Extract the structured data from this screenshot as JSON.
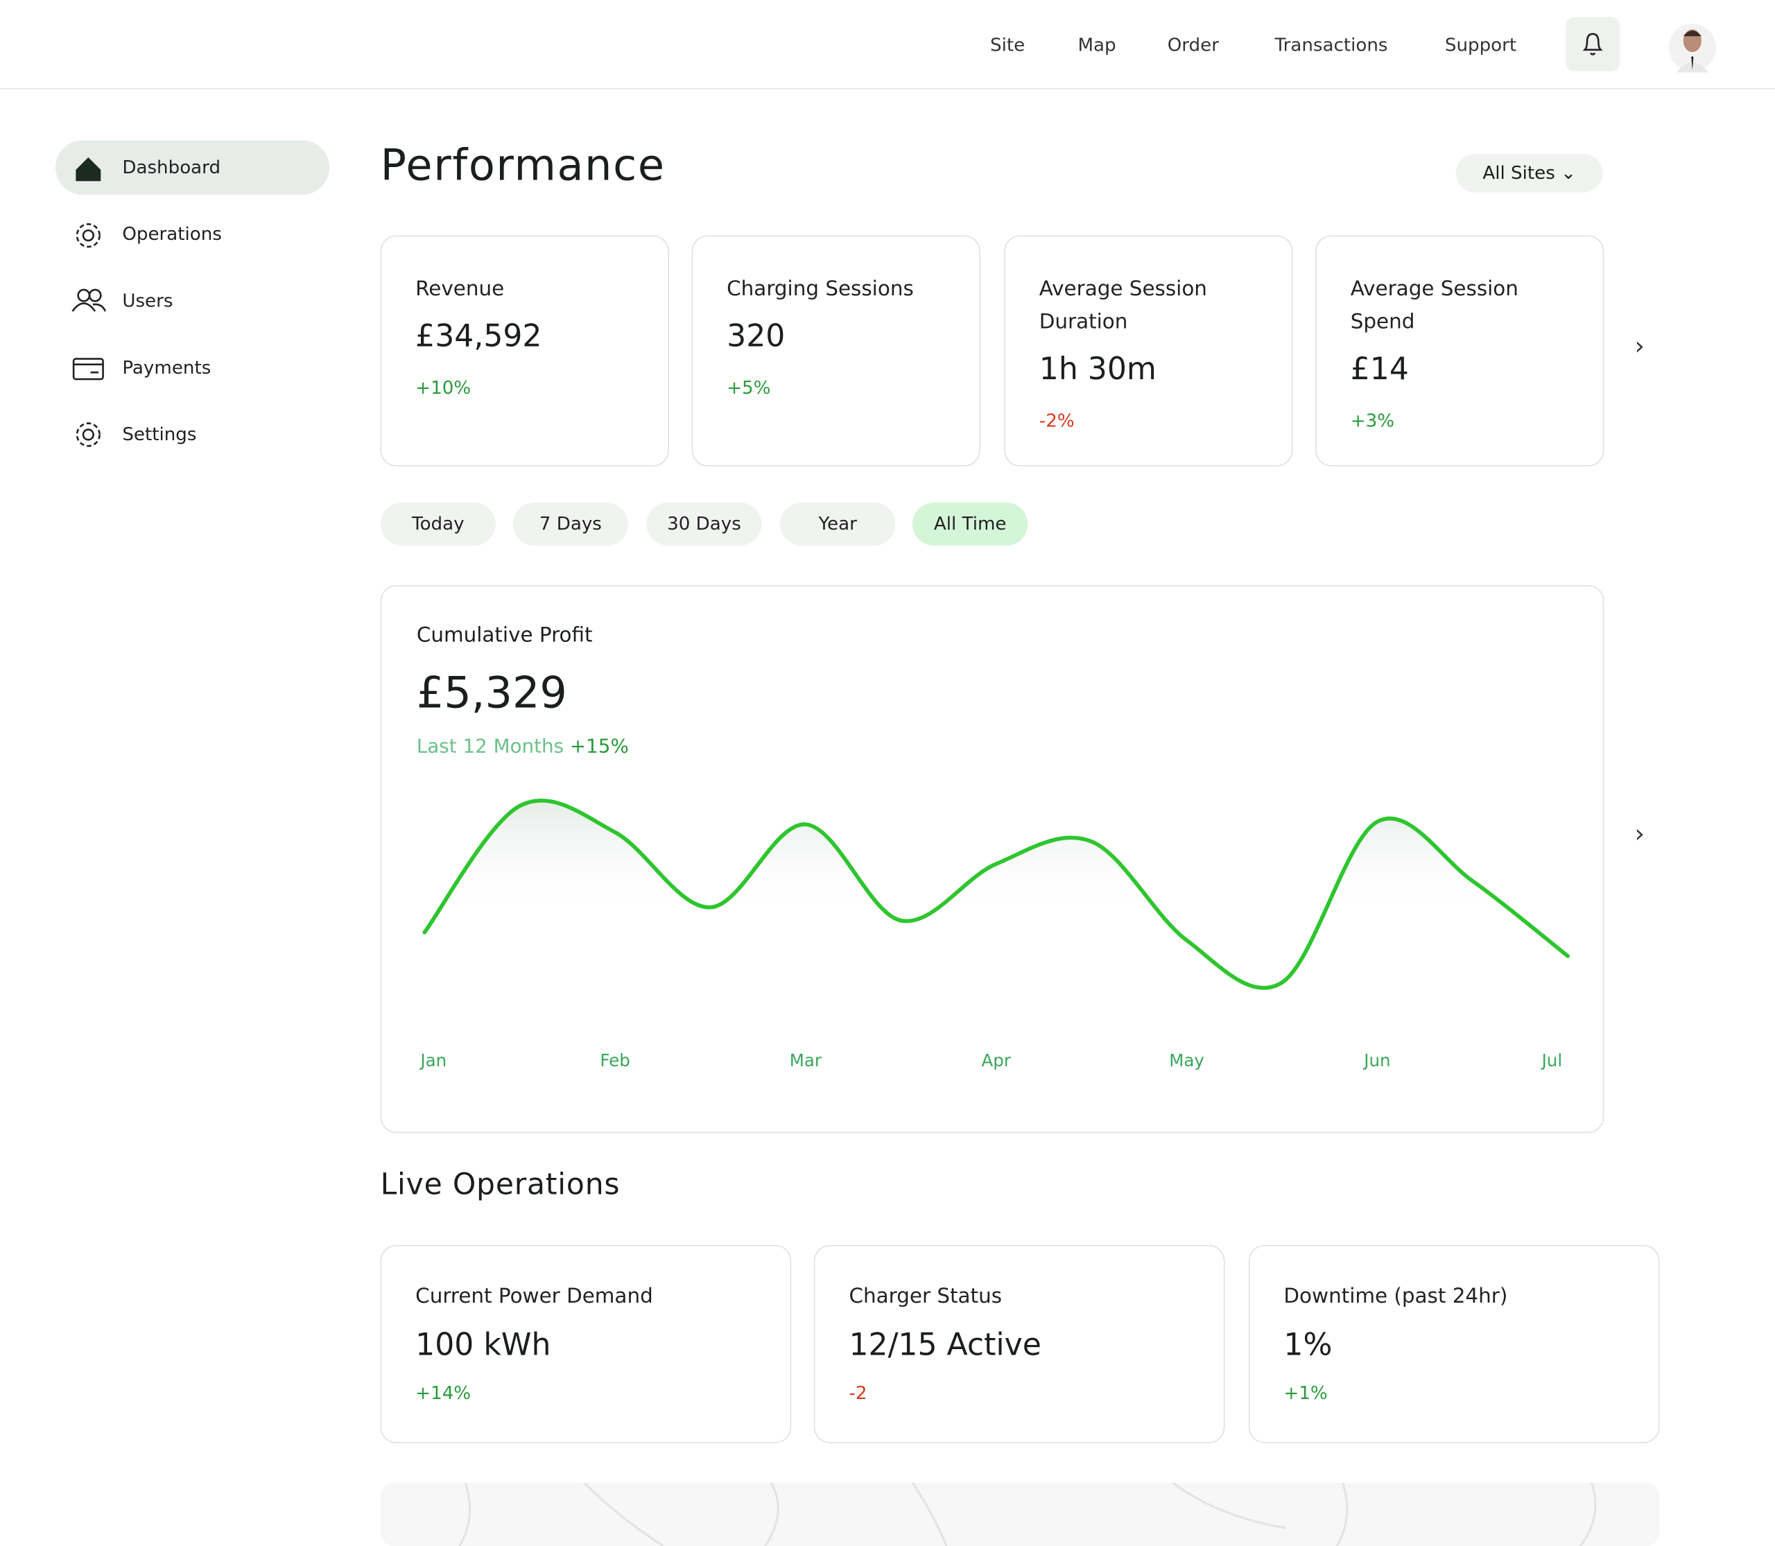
{
  "nav": {
    "links": [
      "Site",
      "Map",
      "Order",
      "Transactions",
      "Support"
    ]
  },
  "sidebar": {
    "items": [
      "Dashboard",
      "Operations",
      "Users",
      "Payments",
      "Settings"
    ]
  },
  "page": {
    "title": "Performance",
    "site_filter": "All Sites"
  },
  "kpis": [
    {
      "label": "Revenue",
      "value": "£34,592",
      "change": "+10%",
      "color": "#2a9a3a"
    },
    {
      "label": "Charging Sessions",
      "value": "320",
      "change": "+5%",
      "color": "#2a9a3a"
    },
    {
      "label": "Average Session Duration",
      "value": "1h 30m",
      "change": "-2%",
      "color": "#d8391f"
    },
    {
      "label": "Average Session Spend",
      "value": "£14",
      "change": "+3%",
      "color": "#2a9a3a"
    }
  ],
  "periods": [
    "Today",
    "7 Days",
    "30 Days",
    "Year",
    "All Time"
  ],
  "chart_data": {
    "type": "line",
    "title": "Cumulative Profit",
    "total": "£5,329",
    "period": "Last 12 Months",
    "change": "+15%",
    "categories": [
      "Jan",
      null,
      "Feb",
      null,
      "Mar",
      null,
      "Apr",
      null,
      "May",
      null,
      "Jun",
      null,
      "Jul"
    ],
    "values": [
      76,
      172,
      152,
      95,
      158,
      85,
      128,
      145,
      70,
      38,
      160,
      115,
      58
    ],
    "color": "#2ec52e"
  },
  "live": {
    "title": "Live Operations",
    "cards": [
      {
        "label": "Current Power Demand",
        "value": "100 kWh",
        "change": "+14%",
        "color": "#2a9a3a"
      },
      {
        "label": "Charger Status",
        "value": "12/15 Active",
        "change": "-2",
        "color": "#d8391f"
      },
      {
        "label": "Downtime (past 24hr)",
        "value": "1%",
        "change": "+1%",
        "color": "#2a9a3a"
      }
    ]
  }
}
